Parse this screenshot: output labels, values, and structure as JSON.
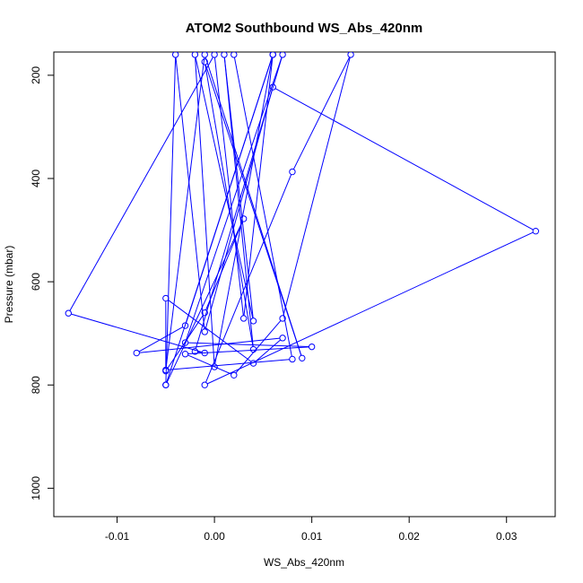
{
  "chart_data": {
    "type": "line",
    "title": "ATOM2 Southbound WS_Abs_420nm",
    "xlabel": "WS_Abs_420nm",
    "ylabel": "Pressure (mbar)",
    "xlim": [
      -0.0165,
      0.035
    ],
    "ylim": [
      1055,
      155
    ],
    "y_reversed": true,
    "x_ticks": [
      -0.01,
      0.0,
      0.01,
      0.02,
      0.03
    ],
    "x_tick_labels": [
      "-0.01",
      "0.00",
      "0.01",
      "0.02",
      "0.03"
    ],
    "y_ticks": [
      200,
      400,
      600,
      800,
      1000
    ],
    "y_tick_labels": [
      "200",
      "400",
      "600",
      "800",
      "1000"
    ],
    "grid": false,
    "series": [
      {
        "color": "#0000ff",
        "marker": "open-circle",
        "points": [
          {
            "x": 0.002,
            "y": 160
          },
          {
            "x": 0.008,
            "y": 750
          },
          {
            "x": -0.005,
            "y": 771
          },
          {
            "x": -0.001,
            "y": 160
          },
          {
            "x": 0.009,
            "y": 748
          },
          {
            "x": -0.001,
            "y": 174
          },
          {
            "x": 0.004,
            "y": 731
          },
          {
            "x": 0.001,
            "y": 160
          },
          {
            "x": 0.004,
            "y": 676
          },
          {
            "x": -0.002,
            "y": 160
          },
          {
            "x": 0.0,
            "y": 765
          },
          {
            "x": 0.006,
            "y": 160
          },
          {
            "x": -0.005,
            "y": 800
          },
          {
            "x": -0.004,
            "y": 160
          },
          {
            "x": -0.001,
            "y": 697
          },
          {
            "x": 0.006,
            "y": 223
          },
          {
            "x": 0.033,
            "y": 502
          },
          {
            "x": -0.001,
            "y": 800
          },
          {
            "x": 0.008,
            "y": 387
          },
          {
            "x": 0.014,
            "y": 160
          },
          {
            "x": 0.007,
            "y": 671
          },
          {
            "x": 0.002,
            "y": 781
          },
          {
            "x": -0.003,
            "y": 740
          },
          {
            "x": 0.01,
            "y": 726
          },
          {
            "x": -0.003,
            "y": 718
          },
          {
            "x": 0.007,
            "y": 160
          },
          {
            "x": -0.002,
            "y": 735
          },
          {
            "x": -0.001,
            "y": 738
          },
          {
            "x": -0.015,
            "y": 661
          },
          {
            "x": 0.0,
            "y": 160
          },
          {
            "x": 0.003,
            "y": 671
          },
          {
            "x": 0.006,
            "y": 160
          },
          {
            "x": -0.003,
            "y": 685
          },
          {
            "x": -0.008,
            "y": 738
          },
          {
            "x": 0.007,
            "y": 709
          },
          {
            "x": 0.004,
            "y": 758
          },
          {
            "x": -0.005,
            "y": 632
          },
          {
            "x": -0.005,
            "y": 773
          },
          {
            "x": -0.001,
            "y": 660
          },
          {
            "x": 0.003,
            "y": 478
          },
          {
            "x": -0.005,
            "y": 800
          }
        ]
      }
    ]
  }
}
